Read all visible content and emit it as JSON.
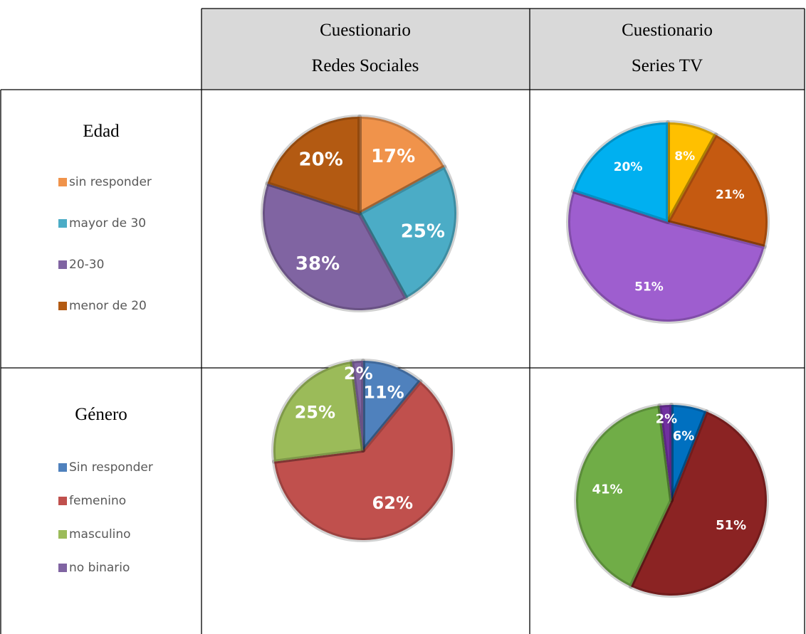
{
  "table": {
    "headers": [
      [
        "Cuestionario",
        "Redes Sociales"
      ],
      [
        "Cuestionario",
        "Series TV"
      ]
    ],
    "rows": [
      "Edad",
      "Género"
    ]
  },
  "chart_data": [
    {
      "type": "pie",
      "categories": [
        "sin responder",
        "mayor de 30",
        "20-30",
        "menor de 20"
      ],
      "values": [
        17,
        25,
        38,
        20
      ],
      "value_labels": [
        "17%",
        "25%",
        "38%",
        "20%"
      ],
      "colors": [
        "#f0934b",
        "#4bacc6",
        "#8064a2",
        "#b35a12"
      ]
    },
    {
      "type": "pie",
      "categories": [
        "sin responder",
        "mayor de 30",
        "20-30",
        "menor de 20"
      ],
      "values": [
        8,
        21,
        51,
        20
      ],
      "value_labels": [
        "8%",
        "21%",
        "51%",
        "20%"
      ],
      "colors": [
        "#ffc000",
        "#c55a11",
        "#9e5ecf",
        "#00b0f0"
      ]
    },
    {
      "type": "pie",
      "categories": [
        "Sin responder",
        "femenino",
        "masculino",
        "no binario"
      ],
      "values": [
        11,
        62,
        25,
        2
      ],
      "value_labels": [
        "11%",
        "62%",
        "25%",
        "2%"
      ],
      "colors": [
        "#4f81bd",
        "#c0504d",
        "#9bbb59",
        "#8064a2"
      ]
    },
    {
      "type": "pie",
      "categories": [
        "Sin responder",
        "femenino",
        "masculino",
        "no binario"
      ],
      "values": [
        6,
        51,
        41,
        2
      ],
      "value_labels": [
        "6%",
        "51%",
        "41%",
        "2%"
      ],
      "colors": [
        "#0070c0",
        "#8b2323",
        "#70ad47",
        "#7030a0"
      ]
    }
  ]
}
